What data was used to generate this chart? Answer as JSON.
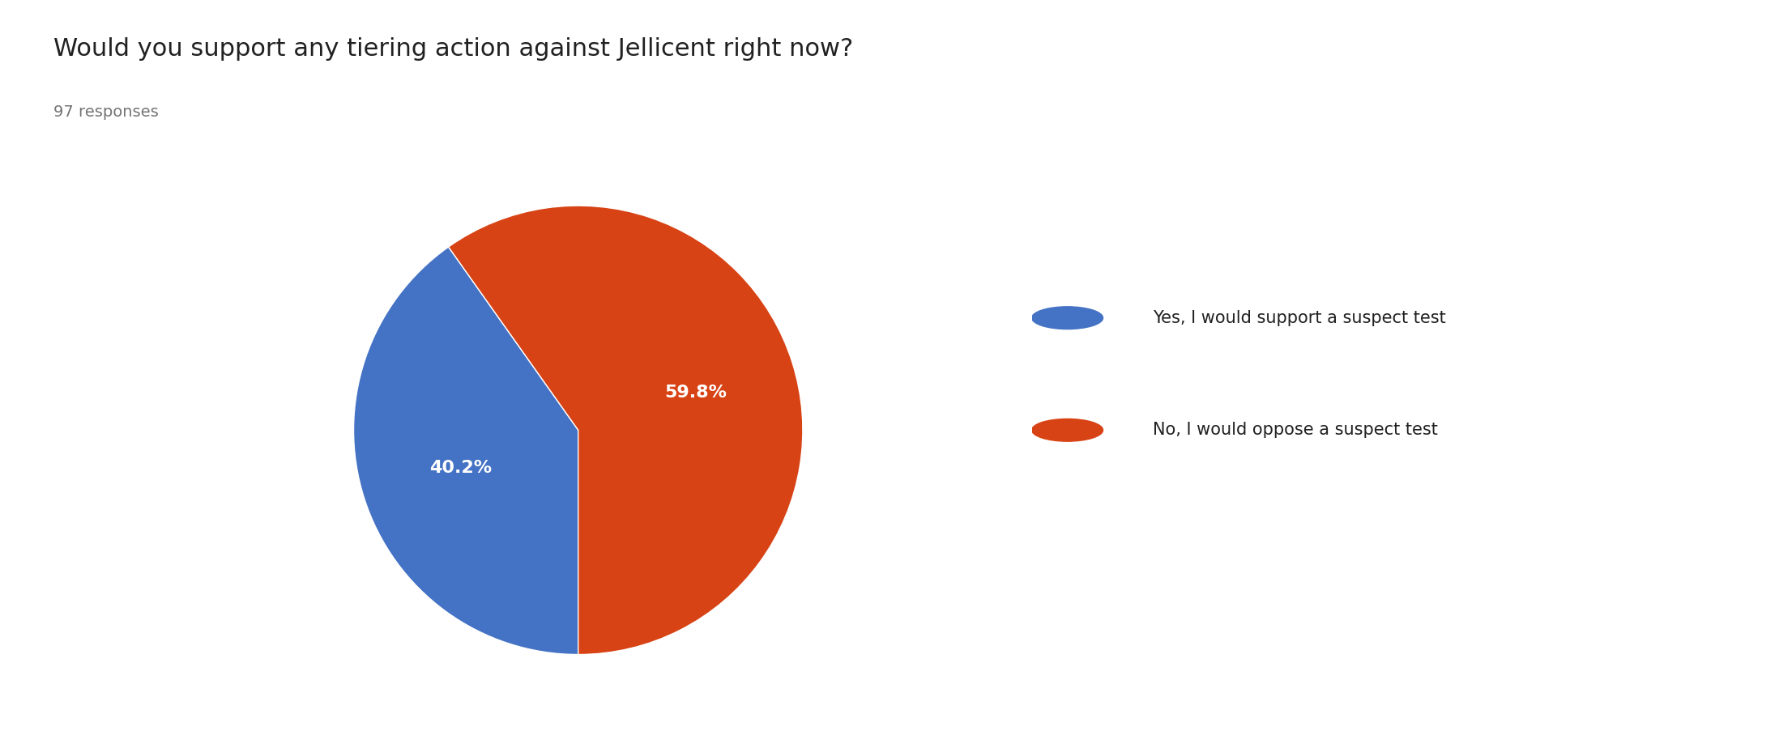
{
  "title": "Would you support any tiering action against Jellicent right now?",
  "responses": "97 responses",
  "slices": [
    40.2,
    59.8
  ],
  "labels": [
    "Yes, I would support a suspect test",
    "No, I would oppose a suspect test"
  ],
  "colors": [
    "#4472C4",
    "#D84315"
  ],
  "pct_labels": [
    "40.2%",
    "59.8%"
  ],
  "title_fontsize": 22,
  "responses_fontsize": 14,
  "legend_fontsize": 15,
  "pct_fontsize": 16,
  "background_color": "#ffffff"
}
